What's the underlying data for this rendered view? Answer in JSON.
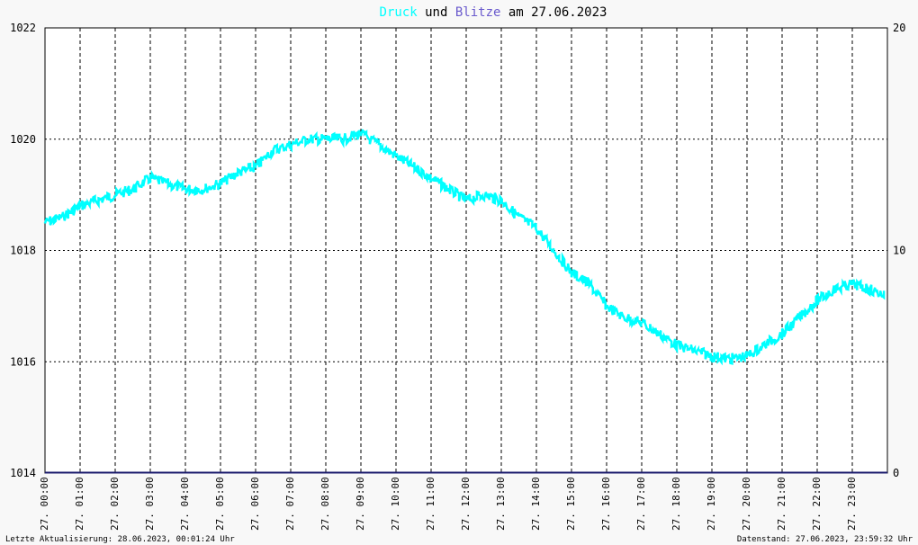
{
  "colors": {
    "background": "#f8f8f8",
    "plot_background": "#ffffff",
    "pressure": "#00ffff",
    "lightning": "#6a5acd",
    "lightning_line": "#1c1c6e",
    "text": "#000000"
  },
  "title": {
    "part1": "Druck",
    "part2": " und ",
    "part3": "Blitze",
    "part4": " am 27.06.2023"
  },
  "footer": {
    "left": "Letzte Aktualisierung: 28.06.2023, 00:01:24 Uhr",
    "right": "Datenstand: 27.06.2023, 23:59:32 Uhr"
  },
  "chart_data": {
    "type": "line",
    "title": "Druck und Blitze am 27.06.2023",
    "x_tick_labels": [
      "27. 00:00",
      "27. 01:00",
      "27. 02:00",
      "27. 03:00",
      "27. 04:00",
      "27. 05:00",
      "27. 06:00",
      "27. 07:00",
      "27. 08:00",
      "27. 09:00",
      "27. 10:00",
      "27. 11:00",
      "27. 12:00",
      "27. 13:00",
      "27. 14:00",
      "27. 15:00",
      "27. 16:00",
      "27. 17:00",
      "27. 18:00",
      "27. 19:00",
      "27. 20:00",
      "27. 21:00",
      "27. 22:00",
      "27. 23:00"
    ],
    "xlim": [
      0,
      24
    ],
    "ylim_left": [
      1014,
      1022
    ],
    "yticks_left": [
      1014,
      1016,
      1018,
      1020,
      1022
    ],
    "ylim_right": [
      0,
      20
    ],
    "yticks_right": [
      0,
      10,
      20
    ],
    "grid": true,
    "series": [
      {
        "name": "Druck",
        "axis": "left",
        "x": [
          0,
          0.5,
          1,
          1.5,
          2,
          2.5,
          3,
          3.5,
          4,
          4.5,
          5,
          5.5,
          6,
          6.5,
          7,
          7.5,
          8,
          8.5,
          9,
          9.5,
          10,
          10.5,
          11,
          11.5,
          12,
          12.5,
          13,
          13.5,
          14,
          14.5,
          15,
          15.5,
          16,
          16.5,
          17,
          17.5,
          18,
          18.5,
          19,
          19.5,
          20,
          20.5,
          21,
          21.5,
          22,
          22.5,
          23,
          23.5,
          23.9
        ],
        "values": [
          1018.5,
          1018.6,
          1018.8,
          1018.9,
          1019.0,
          1019.1,
          1019.3,
          1019.2,
          1019.1,
          1019.1,
          1019.2,
          1019.4,
          1019.5,
          1019.8,
          1019.9,
          1020.0,
          1020.0,
          1020.0,
          1020.1,
          1019.9,
          1019.7,
          1019.5,
          1019.3,
          1019.1,
          1018.9,
          1019.0,
          1018.9,
          1018.6,
          1018.4,
          1018.0,
          1017.6,
          1017.4,
          1017.0,
          1016.8,
          1016.7,
          1016.5,
          1016.3,
          1016.2,
          1016.1,
          1016.05,
          1016.1,
          1016.3,
          1016.5,
          1016.8,
          1017.1,
          1017.3,
          1017.4,
          1017.3,
          1017.2
        ]
      },
      {
        "name": "Blitze",
        "axis": "right",
        "x": [
          0,
          24
        ],
        "values": [
          0,
          0
        ]
      }
    ]
  }
}
